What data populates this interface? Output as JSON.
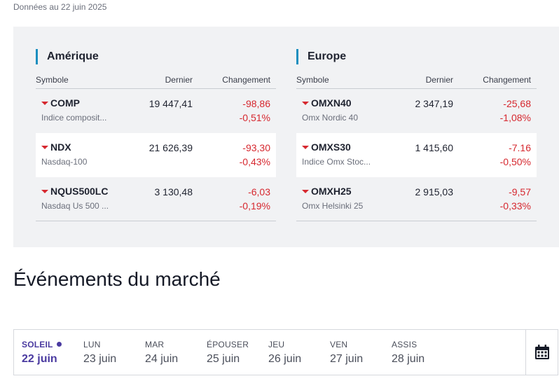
{
  "data_date": "Données au 22 juin 2025",
  "markets": {
    "columns": {
      "symbol": "Symbole",
      "last": "Dernier",
      "change": "Changement"
    },
    "regions": [
      {
        "title": "Amérique",
        "rows": [
          {
            "symbol": "COMP",
            "name": "Indice composit...",
            "last": "19 447,41",
            "change": "-98,86",
            "change_pct": "-0,51%"
          },
          {
            "symbol": "NDX",
            "name": "Nasdaq-100",
            "last": "21 626,39",
            "change": "-93,30",
            "change_pct": "-0,43%"
          },
          {
            "symbol": "NQUS500LC",
            "name": "Nasdaq Us 500 ...",
            "last": "3 130,48",
            "change": "-6,03",
            "change_pct": "-0,19%"
          }
        ]
      },
      {
        "title": "Europe",
        "rows": [
          {
            "symbol": "OMXN40",
            "name": "Omx Nordic 40",
            "last": "2 347,19",
            "change": "-25,68",
            "change_pct": "-1,08%"
          },
          {
            "symbol": "OMXS30",
            "name": "Indice Omx Stoc...",
            "last": "1 415,60",
            "change": "-7.16",
            "change_pct": "-0,50%"
          },
          {
            "symbol": "OMXH25",
            "name": "Omx Helsinki 25",
            "last": "2 915,03",
            "change": "-9,57",
            "change_pct": "-0,33%"
          }
        ]
      }
    ],
    "colors": {
      "negative": "#d6282f",
      "accent": "#1b8fbf",
      "active_day": "#4a3aa0"
    }
  },
  "events": {
    "title": "Événements du marché",
    "days": [
      {
        "name": "SOLEIL",
        "date": "22 juin",
        "active": true
      },
      {
        "name": "LUN",
        "date": "23 juin"
      },
      {
        "name": "MAR",
        "date": "24 juin"
      },
      {
        "name": "ÉPOUSER",
        "date": "25 juin"
      },
      {
        "name": "JEU",
        "date": "26 juin"
      },
      {
        "name": "VEN",
        "date": "27 juin"
      },
      {
        "name": "ASSIS",
        "date": "28 juin"
      }
    ],
    "calendar_icon": "calendar-icon"
  }
}
